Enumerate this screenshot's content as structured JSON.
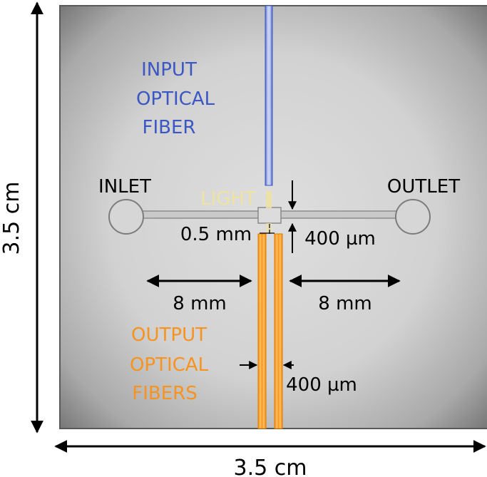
{
  "labels": {
    "input_fiber": [
      "INPUT",
      "OPTICAL",
      "FIBER"
    ],
    "output_fibers": [
      "OUTPUT",
      "OPTICAL",
      "FIBERS"
    ],
    "inlet": "INLET",
    "outlet": "OUTLET",
    "light": "LIGHT",
    "gap": "0.5 mm",
    "channel_width": "400 µm",
    "fiber_width": "400 µm",
    "left_length": "8 mm",
    "right_length": "8 mm",
    "height": "3.5 cm",
    "width": "3.5 cm"
  },
  "colors": {
    "input_fiber": "#3b57c4",
    "output_fibers": "#f7931e",
    "light": "#efe3a0",
    "annotation": "#000000"
  }
}
